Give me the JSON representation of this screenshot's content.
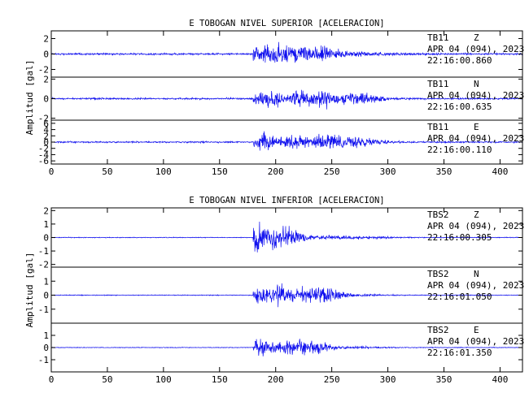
{
  "colors": {
    "trace": "#1010ee",
    "frame": "#000000",
    "background": "#ffffff"
  },
  "chart_data": [
    {
      "type": "line",
      "title": "E TOBOGAN NIVEL SUPERIOR [ACELERACION]",
      "ylabel": "Amplitud [gal]",
      "xlim": [
        0,
        420
      ],
      "xticks": [
        "0",
        "50",
        "100",
        "150",
        "200",
        "250",
        "300",
        "350",
        "400"
      ],
      "onset_s": 180,
      "traces": [
        {
          "station": "TB11",
          "component": "Z",
          "date": "APR 04 (094), 2023",
          "time": "22:16:00.860",
          "ylim": [
            -3,
            3
          ],
          "yticks": [
            "2",
            "0",
            "-2"
          ],
          "noise": 0.2,
          "peak": 2.6,
          "envelope_peaks_s": [
            190,
            205,
            225,
            240
          ],
          "decay_end_s": 360
        },
        {
          "station": "TB11",
          "component": "N",
          "date": "APR 04 (094), 2023",
          "time": "22:16:00.635",
          "ylim": [
            -2.2,
            2.2
          ],
          "yticks": [
            "2",
            "0",
            "-2"
          ],
          "noise": 0.15,
          "peak": 1.9,
          "envelope_peaks_s": [
            195,
            225,
            245,
            270
          ],
          "decay_end_s": 330
        },
        {
          "station": "TB11",
          "component": "E",
          "date": "APR 04 (094), 2023",
          "time": "22:16:00.110",
          "ylim": [
            -7,
            7
          ],
          "yticks": [
            "6",
            "4",
            "2",
            "0",
            "-2",
            "-4",
            "-6"
          ],
          "noise": 0.4,
          "peak": 5.5,
          "envelope_peaks_s": [
            190,
            215,
            245,
            270
          ],
          "decay_end_s": 330
        }
      ]
    },
    {
      "type": "line",
      "title": "E TOBOGAN NIVEL INFERIOR [ACELERACION]",
      "ylabel": "Amplitud [gal]",
      "xlim": [
        0,
        420
      ],
      "xticks": [
        "0",
        "50",
        "100",
        "150",
        "200",
        "250",
        "300",
        "350",
        "400"
      ],
      "onset_s": 180,
      "traces": [
        {
          "station": "TBS2",
          "component": "Z",
          "date": "APR 04 (094), 2023",
          "time": "22:16:00.305",
          "ylim": [
            -2.2,
            2.2
          ],
          "yticks": [
            "2",
            "1",
            "0",
            "-1",
            "-2"
          ],
          "noise": 0.05,
          "peak": 1.8,
          "envelope_peaks_s": [
            182,
            190,
            205
          ],
          "decay_end_s": 330
        },
        {
          "station": "TBS2",
          "component": "N",
          "date": "APR 04 (094), 2023",
          "time": "22:16:01.050",
          "ylim": [
            -2.0,
            2.0
          ],
          "yticks": [
            "1",
            "0",
            "-1"
          ],
          "noise": 0.05,
          "peak": 1.5,
          "envelope_peaks_s": [
            185,
            205,
            225,
            240
          ],
          "decay_end_s": 320
        },
        {
          "station": "TBS2",
          "component": "E",
          "date": "APR 04 (094), 2023",
          "time": "22:16:01.350",
          "ylim": [
            -2.0,
            2.0
          ],
          "yticks": [
            "1",
            "0",
            "-1"
          ],
          "noise": 0.05,
          "peak": 1.4,
          "envelope_peaks_s": [
            185,
            205,
            230
          ],
          "decay_end_s": 320
        }
      ]
    }
  ]
}
